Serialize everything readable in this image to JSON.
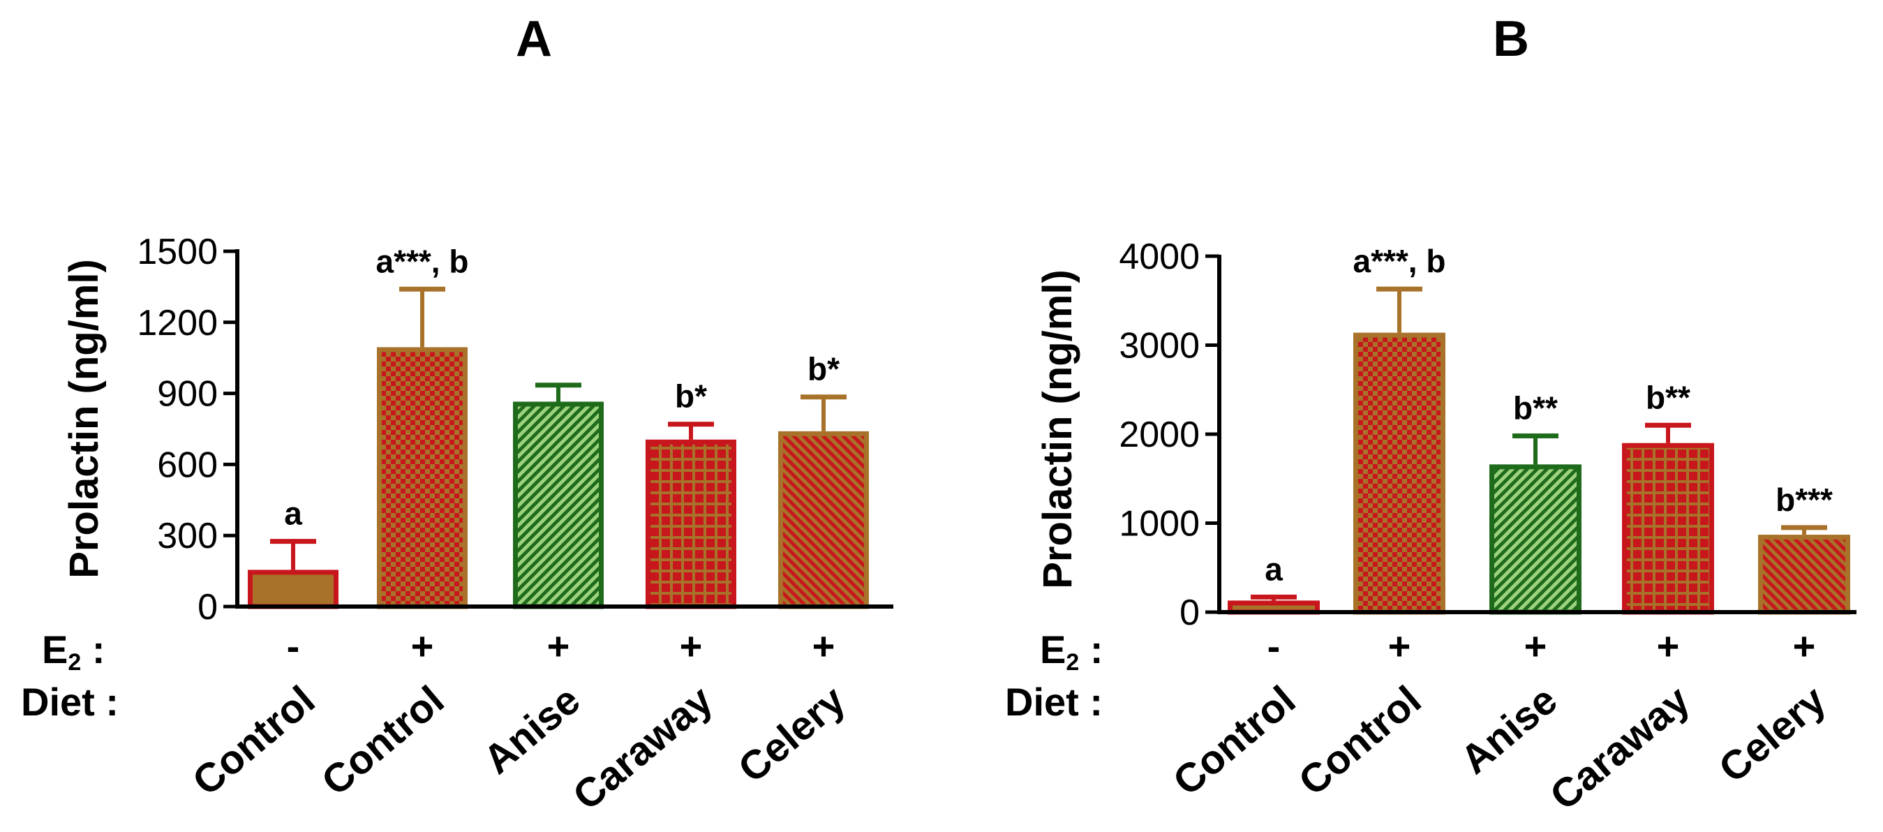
{
  "row_labels": {
    "e2": "E",
    "e2_sub": "2",
    "e2_colon": " :",
    "diet": "Diet :"
  },
  "colors": {
    "red": "#c8161d",
    "brown": "#a8722a",
    "green": "#1f6b1c",
    "light_green": "#9ed37e",
    "axis": "#000000"
  },
  "chart_data": [
    {
      "type": "bar",
      "title": "A",
      "ylabel": "Prolactin (ng/ml)",
      "xlabel": "",
      "ylim": [
        0,
        1500
      ],
      "yticks": [
        0,
        300,
        600,
        900,
        1200,
        1500
      ],
      "categories": [
        "Control",
        "Control",
        "Anise",
        "Caraway",
        "Celery"
      ],
      "e2": [
        "-",
        "+",
        "+",
        "+",
        "+"
      ],
      "values": [
        155,
        1095,
        865,
        705,
        740
      ],
      "errors": [
        120,
        245,
        70,
        65,
        145
      ],
      "annotations": [
        "a",
        "a***, b",
        "",
        "b*",
        "b*"
      ],
      "styles": [
        "solid-brown-red",
        "checker-red-on-brown",
        "hatch-green",
        "grid-brown-on-red",
        "hatch-red-on-brown"
      ]
    },
    {
      "type": "bar",
      "title": "B",
      "ylabel": "Prolactin (ng/ml)",
      "xlabel": "",
      "ylim": [
        0,
        4000
      ],
      "yticks": [
        0,
        1000,
        2000,
        3000,
        4000
      ],
      "categories": [
        "Control",
        "Control",
        "Anise",
        "Caraway",
        "Celery"
      ],
      "e2": [
        "-",
        "+",
        "+",
        "+",
        "+"
      ],
      "values": [
        130,
        3140,
        1660,
        1900,
        870
      ],
      "errors": [
        40,
        490,
        320,
        200,
        80
      ],
      "annotations": [
        "a",
        "a***, b",
        "b**",
        "b**",
        "b***"
      ],
      "styles": [
        "solid-brown-red",
        "checker-red-on-brown",
        "hatch-green",
        "grid-brown-on-red",
        "hatch-red-on-brown"
      ]
    }
  ]
}
